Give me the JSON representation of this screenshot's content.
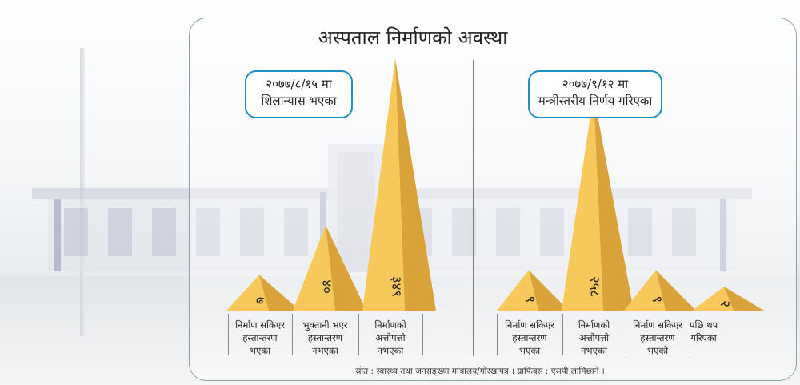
{
  "title": "अस्पताल निर्माणको अवस्था",
  "left_callout": [
    "२०७७/८/१५ मा",
    "शिलान्यास भएका"
  ],
  "right_callout": [
    "२०७७/९/१२ मा",
    "मन्त्रीस्तरीय निर्णय गरिएका"
  ],
  "source": "स्रोत : स्वास्थ्य तथा जनसङ्ख्या मन्त्रालय/गोरखापत्र । ग्राफिक्स : एसपी लामिछाने ।",
  "colors": {
    "pyramid_light": "#f7c85a",
    "pyramid_dark": "#d9a33a",
    "callout_border": "#1f8fc4",
    "panel_border": "#8aa1ad"
  },
  "chart_data": [
    {
      "type": "bar",
      "group": "२०७७/८/१५ मा शिलान्यास भएका",
      "categories": [
        [
          "निर्माण सकिएर",
          "हस्तान्तरण",
          "भएका"
        ],
        [
          "भुक्तानी भएर",
          "हस्तान्तरण",
          "नभएका"
        ],
        [
          "निर्माणको",
          "अत्तोपत्तो",
          "नभएका"
        ]
      ],
      "values": [
        7,
        40,
        349
      ],
      "value_labels": [
        "७",
        "४०",
        "३४९"
      ]
    },
    {
      "type": "bar",
      "group": "२०७७/९/१२ मा मन्त्रीस्तरीय निर्णय गरिएका",
      "categories": [
        [
          "निर्माण सकिएर",
          "हस्तान्तरण",
          "भएका"
        ],
        [
          "निर्माणको",
          "अत्तोपत्तो",
          "नभएका"
        ],
        [
          "निर्माण सकिएर",
          "हस्तान्तरण",
          "भएको"
        ],
        [
          "पछि थप",
          "गरिएका"
        ]
      ],
      "values": [
        9,
        258,
        9,
        2
      ],
      "value_labels": [
        "९",
        "२५८",
        "९",
        "२"
      ]
    }
  ]
}
